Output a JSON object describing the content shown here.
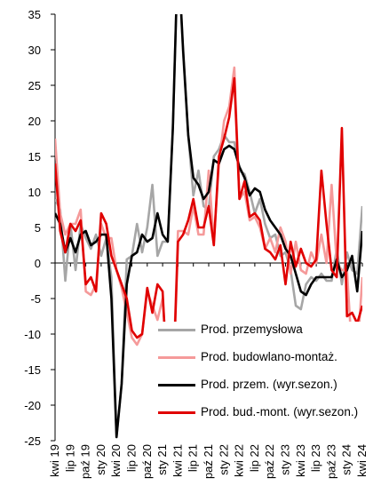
{
  "chart_data": {
    "type": "line",
    "categories": [
      "kwi 19",
      null,
      null,
      "lip 19",
      null,
      null,
      "paź 19",
      null,
      null,
      "sty 20",
      null,
      null,
      "kwi 20",
      null,
      null,
      "lip 20",
      null,
      null,
      "paź 20",
      null,
      null,
      "sty 21",
      null,
      null,
      "kwi 21",
      null,
      null,
      "lip 21",
      null,
      null,
      "paź 21",
      null,
      null,
      "sty 22",
      null,
      null,
      "kwi 22",
      null,
      null,
      "lip 22",
      null,
      null,
      "paź 22",
      null,
      null,
      "sty 23",
      null,
      null,
      "kwi 23",
      null,
      null,
      "lip 23",
      null,
      null,
      "paź 23",
      null,
      null,
      "sty 24",
      null,
      null,
      "kwi 24"
    ],
    "series": [
      {
        "name": "Prod. przemysłowa",
        "color": "#a6a6a6",
        "values": [
          9,
          7.5,
          -2.5,
          5.5,
          -1,
          5.5,
          3.5,
          2,
          4,
          1,
          3.5,
          -2,
          -24.5,
          -17,
          0.5,
          1,
          5.5,
          1.5,
          5,
          11,
          1,
          3,
          3,
          19,
          44,
          29.5,
          18,
          9.5,
          13,
          8,
          7.5,
          15,
          16,
          18,
          17,
          17,
          13,
          12.5,
          10,
          7,
          9,
          5.5,
          3.5,
          4,
          1,
          1.5,
          -1,
          -6,
          -6.5,
          -3,
          -2,
          -2.5,
          -1.5,
          -2.5,
          -2.5,
          2,
          -3,
          1.5,
          -1,
          -1.5,
          8
        ]
      },
      {
        "name": "Prod. budowlano-montaż.",
        "color": "#f59a9a",
        "values": [
          17.5,
          7,
          4,
          5.5,
          5.5,
          7.5,
          -4,
          -4.5,
          -3,
          5.5,
          3.5,
          3.5,
          -1,
          -3.5,
          -7,
          -10.5,
          -11.5,
          -10,
          -4,
          -6,
          -8,
          -5,
          -15,
          -17.5,
          4.5,
          4.5,
          4,
          8,
          4,
          4,
          13,
          3,
          14,
          20,
          22,
          27.5,
          9,
          10,
          6,
          6.5,
          5,
          2,
          3.5,
          1.5,
          5,
          3,
          -1.5,
          3,
          -1,
          -1.5,
          1.5,
          0,
          4,
          0,
          11,
          0,
          -1,
          -1,
          -13,
          -13,
          -2
        ]
      },
      {
        "name": "Prod. przem. (wyr.sezon.)",
        "color": "#000000",
        "values": [
          7,
          5.5,
          1.5,
          3.5,
          1.5,
          4,
          4.5,
          2.5,
          3,
          4,
          4,
          -5,
          -24.5,
          -17,
          -3,
          1,
          1.5,
          4,
          3,
          3.5,
          7,
          4,
          3,
          19,
          44,
          30,
          18,
          12,
          11,
          9,
          10,
          14.5,
          14,
          16,
          16.5,
          16,
          13.5,
          12,
          9.5,
          10.5,
          10,
          7.5,
          6,
          5,
          4,
          2,
          1,
          -1.5,
          -4,
          -4.5,
          -3,
          -2,
          -2,
          -2,
          -2,
          0.5,
          -2,
          -1,
          1,
          -4,
          4.5
        ]
      },
      {
        "name": "Prod. bud.-mont. (wyr.sezon.)",
        "color": "#e00000",
        "values": [
          14,
          4.5,
          1.5,
          5.5,
          4.5,
          6,
          -3,
          -2,
          -4,
          7,
          5.5,
          1,
          -1,
          -3,
          -5,
          -9.5,
          -10.5,
          -10,
          -3.5,
          -7,
          -3,
          -4,
          -18,
          -18,
          3,
          4,
          6,
          9,
          5,
          5,
          8,
          2.5,
          15,
          17.5,
          20.5,
          26,
          9,
          11.5,
          6.5,
          7,
          6,
          2,
          1.5,
          0.5,
          2.5,
          -3,
          3,
          -0.5,
          2,
          0,
          -0.5,
          0.5,
          13,
          5.5,
          -1,
          -2,
          19,
          -7.5,
          -7,
          -8.5,
          -6
        ]
      }
    ],
    "ylim": [
      -25,
      35
    ],
    "yticks": [
      -25,
      -20,
      -15,
      -10,
      -5,
      0,
      5,
      10,
      15,
      20,
      25,
      30,
      35
    ],
    "grid": false,
    "legend": "lower right"
  }
}
